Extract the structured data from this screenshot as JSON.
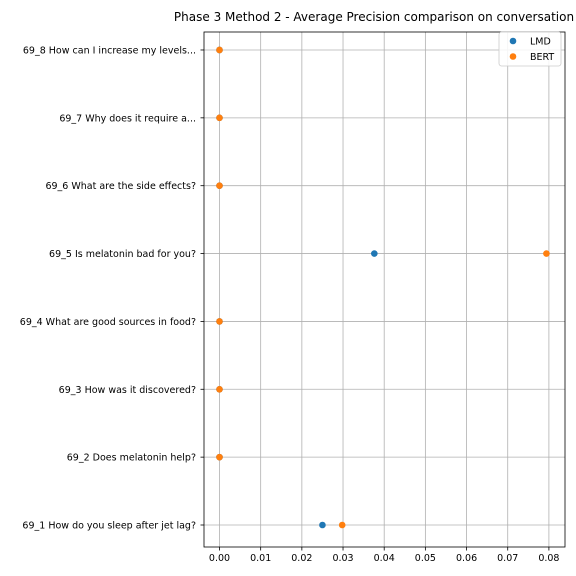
{
  "chart_data": {
    "type": "scatter",
    "title": "Phase 3 Method 2 - Average Precision comparison on conversation",
    "xlabel": "",
    "ylabel": "",
    "xlim": [
      -0.0035,
      0.0828
    ],
    "xticks": [
      0.0,
      0.01,
      0.02,
      0.03,
      0.04,
      0.05,
      0.06,
      0.07,
      0.08
    ],
    "xtick_labels": [
      "0.00",
      "0.01",
      "0.02",
      "0.03",
      "0.04",
      "0.05",
      "0.06",
      "0.07",
      "0.08"
    ],
    "categories": [
      "69_1 How do you sleep after jet lag?",
      "69_2 Does melatonin help?",
      "69_3 How was it discovered?",
      "69_4 What are good sources in food?",
      "69_5 Is melatonin bad for you?",
      "69_6 What are the side effects?",
      "69_7 Why does it require a...",
      "69_8 How can I increase my levels..."
    ],
    "series": [
      {
        "name": "LMD",
        "color": "#1f77b4",
        "values": [
          0.025,
          0.0,
          0.0,
          0.0,
          0.0376,
          0.0,
          0.0,
          0.0
        ]
      },
      {
        "name": "BERT",
        "color": "#ff7f0e",
        "values": [
          0.0298,
          0.0,
          0.0,
          0.0,
          0.0794,
          0.0,
          0.0,
          0.0
        ]
      }
    ],
    "grid": true,
    "legend_position": "upper right"
  }
}
